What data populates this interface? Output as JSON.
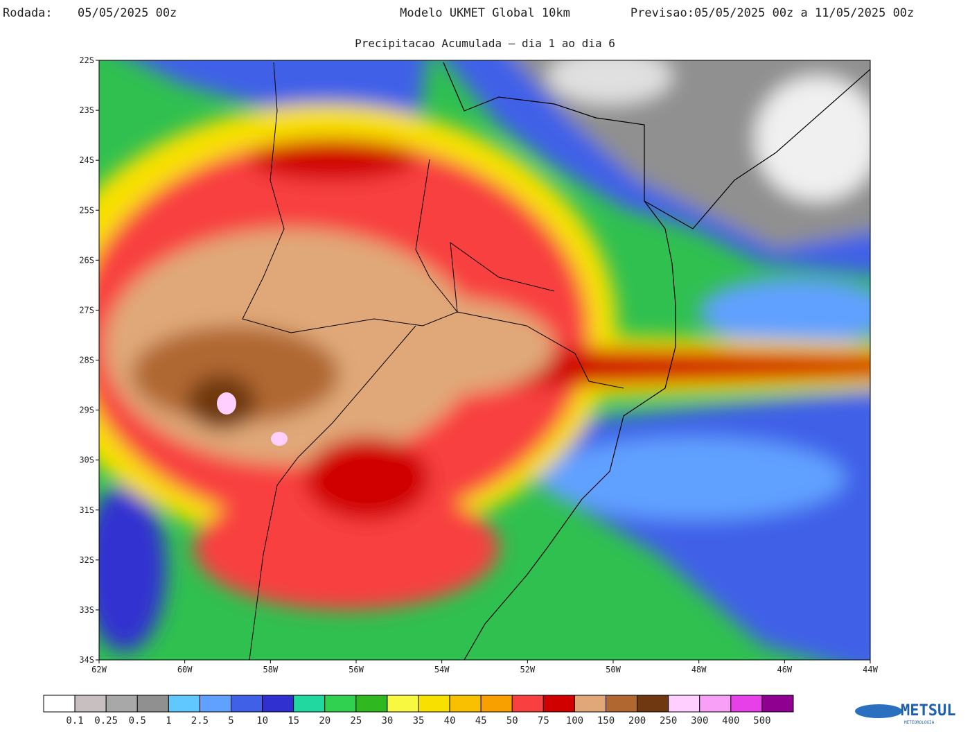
{
  "header": {
    "run_label": "Rodada:",
    "run": "05/05/2025 00z",
    "model": "Modelo UKMET Global 10km",
    "forecast_label": "Previsao:",
    "forecast": "05/05/2025 00z a 11/05/2025 00z",
    "subtitle": "Precipitacao Acumulada — dia 1 ao dia 6"
  },
  "map": {
    "lonlim": [
      -62,
      -44
    ],
    "latlim": [
      -34,
      -22
    ],
    "latticks": [
      {
        "value": -22,
        "label": "22S"
      },
      {
        "value": -23,
        "label": "23S"
      },
      {
        "value": -24,
        "label": "24S"
      },
      {
        "value": -25,
        "label": "25S"
      },
      {
        "value": -26,
        "label": "26S"
      },
      {
        "value": -27,
        "label": "27S"
      },
      {
        "value": -28,
        "label": "28S"
      },
      {
        "value": -29,
        "label": "29S"
      },
      {
        "value": -30,
        "label": "30S"
      },
      {
        "value": -31,
        "label": "31S"
      },
      {
        "value": -32,
        "label": "32S"
      },
      {
        "value": -33,
        "label": "33S"
      },
      {
        "value": -34,
        "label": "34S"
      }
    ],
    "lonticks": [
      {
        "value": -62,
        "label": "62W"
      },
      {
        "value": -60,
        "label": "60W"
      },
      {
        "value": -58,
        "label": "58W"
      },
      {
        "value": -56,
        "label": "56W"
      },
      {
        "value": -54,
        "label": "54W"
      },
      {
        "value": -52,
        "label": "52W"
      },
      {
        "value": -50,
        "label": "50W"
      },
      {
        "value": -48,
        "label": "48W"
      },
      {
        "value": -46,
        "label": "46W"
      },
      {
        "value": -44,
        "label": "44W"
      }
    ]
  },
  "colorbar": {
    "colors": [
      "#ffffff",
      "#c8c0c0",
      "#a8a8a8",
      "#909090",
      "#60c8ff",
      "#60a0ff",
      "#4060e8",
      "#3030d0",
      "#20d8a0",
      "#30d050",
      "#30b820",
      "#f8f840",
      "#f8e000",
      "#f8c000",
      "#f8a000",
      "#f84040",
      "#d00000",
      "#e0a878",
      "#b06830",
      "#703810",
      "#ffd0ff",
      "#f8a0f8",
      "#e840e8",
      "#900090"
    ],
    "labels": [
      "0.1",
      "0.25",
      "0.5",
      "1",
      "2.5",
      "5",
      "10",
      "15",
      "20",
      "25",
      "30",
      "35",
      "40",
      "45",
      "50",
      "75",
      "100",
      "150",
      "200",
      "250",
      "300",
      "400",
      "500"
    ]
  },
  "logo": {
    "name": "METSUL",
    "sub": "METEOROLOGIA"
  }
}
